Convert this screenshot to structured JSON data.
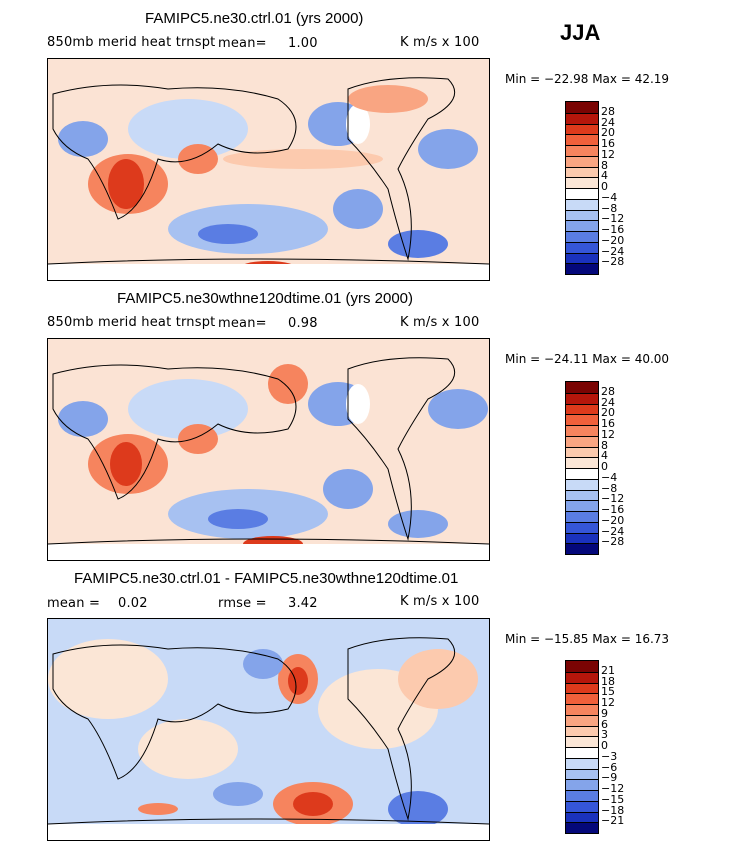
{
  "season": "JJA",
  "panels": [
    {
      "title": "FAMIPC5.ne30.ctrl.01 (yrs 2000)",
      "variable": "850mb merid heat trnspt",
      "mean_label": "mean=",
      "mean_value": "1.00",
      "units": "K m/s x 100",
      "minmax": "Min = −22.98 Max =  42.19",
      "colorbar_labels": [
        "28",
        "24",
        "20",
        "16",
        "12",
        "8",
        "4",
        "0",
        "−4",
        "−8",
        "−12",
        "−16",
        "−20",
        "−24",
        "−28"
      ]
    },
    {
      "title": "FAMIPC5.ne30wthne120dtime.01 (yrs 2000)",
      "variable": "850mb merid heat trnspt",
      "mean_label": "mean=",
      "mean_value": "0.98",
      "units": "K m/s x 100",
      "minmax": "Min = −24.11 Max =  40.00",
      "colorbar_labels": [
        "28",
        "24",
        "20",
        "16",
        "12",
        "8",
        "4",
        "0",
        "−4",
        "−8",
        "−12",
        "−16",
        "−20",
        "−24",
        "−28"
      ]
    },
    {
      "title": "FAMIPC5.ne30.ctrl.01 - FAMIPC5.ne30wthne120dtime.01",
      "mean_label": "mean =",
      "mean_value": "0.02",
      "rmse_label": "rmse =",
      "rmse_value": "3.42",
      "units": "K m/s x 100",
      "minmax": "Min = −15.85 Max =  16.73",
      "colorbar_labels": [
        "21",
        "18",
        "15",
        "12",
        "9",
        "6",
        "3",
        "0",
        "−3",
        "−6",
        "−9",
        "−12",
        "−15",
        "−18",
        "−21"
      ]
    }
  ],
  "colors": {
    "ramp": [
      "#7a0403",
      "#b5160b",
      "#dd3a1c",
      "#f0603b",
      "#f6845e",
      "#f9a582",
      "#fccaae",
      "#fbe6d6",
      "#ffffff",
      "#c8daf7",
      "#a7c1f1",
      "#84a4ea",
      "#5a7de3",
      "#3556d8",
      "#1a32bd",
      "#0a1a9a",
      "#04087a"
    ],
    "background": "#fbe3d4",
    "land_line": "#000000"
  }
}
